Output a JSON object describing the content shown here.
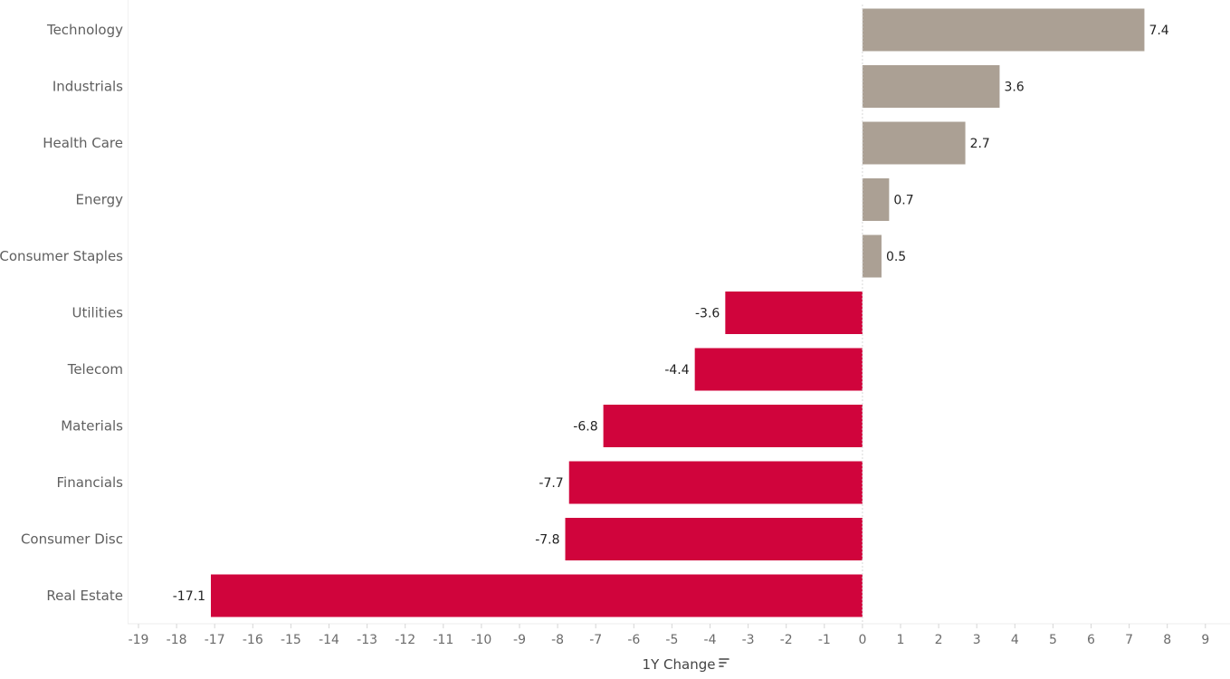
{
  "chart_data": {
    "type": "bar",
    "orientation": "horizontal",
    "xlabel": "1Y Change",
    "ylabel": "",
    "xlim": [
      -19,
      9
    ],
    "xticks": [
      -19,
      -18,
      -17,
      -16,
      -15,
      -14,
      -13,
      -12,
      -11,
      -10,
      -9,
      -8,
      -7,
      -6,
      -5,
      -4,
      -3,
      -2,
      -1,
      0,
      1,
      2,
      3,
      4,
      5,
      6,
      7,
      8,
      9
    ],
    "categories": [
      "Technology",
      "Industrials",
      "Health Care",
      "Energy",
      "Consumer Staples",
      "Utilities",
      "Telecom",
      "Materials",
      "Financials",
      "Consumer Disc",
      "Real Estate"
    ],
    "values": [
      7.4,
      3.6,
      2.7,
      0.7,
      0.5,
      -3.6,
      -4.4,
      -6.8,
      -7.7,
      -7.8,
      -17.1
    ],
    "data_labels": [
      "7.4",
      "3.6",
      "2.7",
      "0.7",
      "0.5",
      "-3.6",
      "-4.4",
      "-6.8",
      "-7.7",
      "-7.8",
      "-17.1"
    ],
    "colors": {
      "positive": "#aba094",
      "negative": "#d0043c"
    },
    "grid": false,
    "legend": "none",
    "sort_icon": "sort-descending-icon"
  }
}
